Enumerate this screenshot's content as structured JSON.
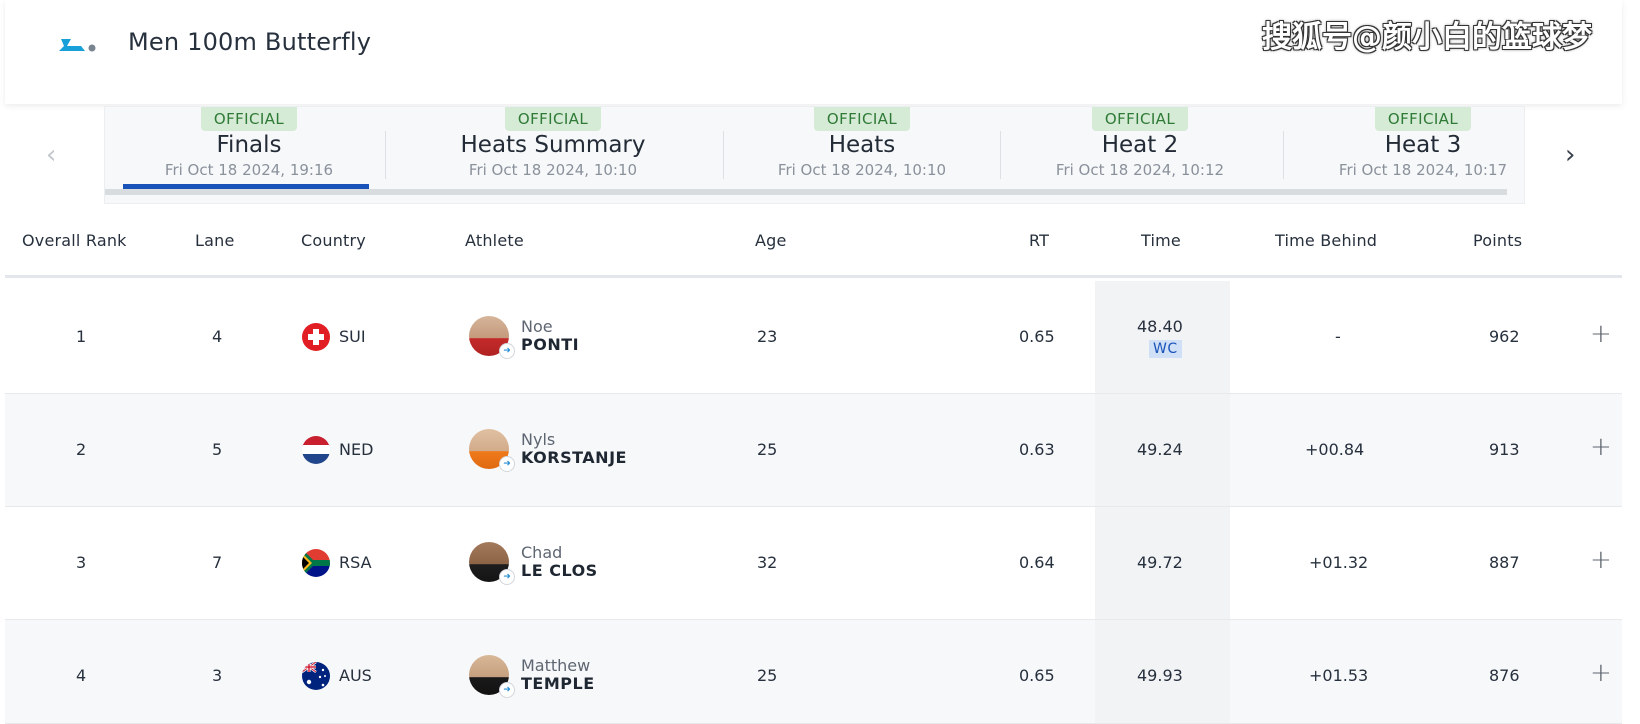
{
  "header": {
    "title": "Men 100m Butterfly",
    "watermark": "搜狐号@颜小白的篮球梦",
    "logo_color": "#1aa0d8"
  },
  "tabs": [
    {
      "badge": "OFFICIAL",
      "label": "Finals",
      "date": "Fri Oct 18 2024, 19:16",
      "active": true
    },
    {
      "badge": "OFFICIAL",
      "label": "Heats Summary",
      "date": "Fri Oct 18 2024, 10:10",
      "active": false
    },
    {
      "badge": "OFFICIAL",
      "label": "Heats",
      "date": "Fri Oct 18 2024, 10:10",
      "active": false
    },
    {
      "badge": "OFFICIAL",
      "label": "Heat 2",
      "date": "Fri Oct 18 2024, 10:12",
      "active": false
    },
    {
      "badge": "OFFICIAL",
      "label": "Heat 3",
      "date": "Fri Oct 18 2024, 10:17",
      "active": false
    }
  ],
  "nav": {
    "prev_icon": "‹",
    "next_icon": "›"
  },
  "columns": {
    "overall_rank": "Overall Rank",
    "lane": "Lane",
    "country": "Country",
    "athlete": "Athlete",
    "age": "Age",
    "rt": "RT",
    "time": "Time",
    "time_behind": "Time Behind",
    "points": "Points"
  },
  "rows": [
    {
      "rank": "1",
      "lane": "4",
      "country": "SUI",
      "first": "Noe",
      "last": "PONTI",
      "age": "23",
      "rt": "0.65",
      "time": "48.40",
      "record": "WC",
      "behind": "-",
      "points": "962",
      "expand": "+"
    },
    {
      "rank": "2",
      "lane": "5",
      "country": "NED",
      "first": "Nyls",
      "last": "KORSTANJE",
      "age": "25",
      "rt": "0.63",
      "time": "49.24",
      "record": "",
      "behind": "+00.84",
      "points": "913",
      "expand": "+"
    },
    {
      "rank": "3",
      "lane": "7",
      "country": "RSA",
      "first": "Chad",
      "last": "LE CLOS",
      "age": "32",
      "rt": "0.64",
      "time": "49.72",
      "record": "",
      "behind": "+01.32",
      "points": "887",
      "expand": "+"
    },
    {
      "rank": "4",
      "lane": "3",
      "country": "AUS",
      "first": "Matthew",
      "last": "TEMPLE",
      "age": "25",
      "rt": "0.65",
      "time": "49.93",
      "record": "",
      "behind": "+01.53",
      "points": "876",
      "expand": "+"
    }
  ],
  "colors": {
    "official_bg": "#d5ebd6",
    "official_text": "#2f7a36",
    "active_tab_bar": "#1a53b8",
    "record_bg": "#cfe0f7"
  }
}
